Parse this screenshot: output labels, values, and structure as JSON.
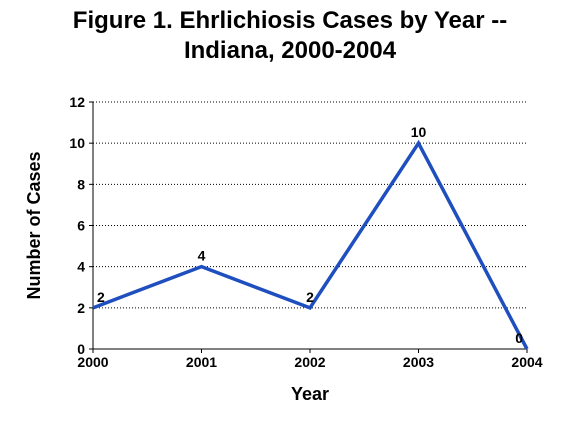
{
  "chart_data": {
    "type": "line",
    "title_line1": "Figure 1.  Ehrlichiosis Cases by Year --",
    "title_line2": "Indiana, 2000-2004",
    "xlabel": "Year",
    "ylabel": "Number of Cases",
    "categories": [
      "2000",
      "2001",
      "2002",
      "2003",
      "2004"
    ],
    "series": [
      {
        "values": [
          2,
          4,
          2,
          10,
          0
        ]
      }
    ],
    "data_labels": [
      "2",
      "4",
      "2",
      "10",
      "0"
    ],
    "ylim": [
      0,
      12
    ],
    "yticks": [
      "0",
      "2",
      "4",
      "6",
      "8",
      "10",
      "12"
    ],
    "grid": "horizontal-dotted",
    "line_color": "#1f4fbf"
  }
}
